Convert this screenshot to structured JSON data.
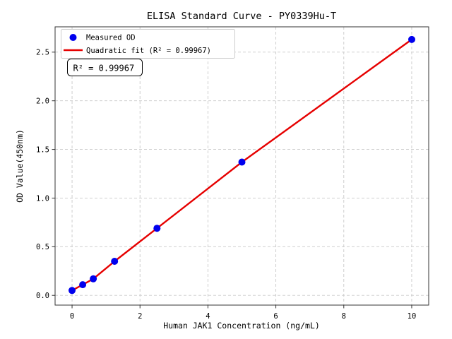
{
  "chart_data": {
    "type": "scatter",
    "title": "ELISA Standard Curve - PY0339Hu-T",
    "xlabel": "Human JAK1 Concentration (ng/mL)",
    "ylabel": "OD Value(450nm)",
    "xlim": [
      -0.5,
      10.5
    ],
    "ylim": [
      -0.1,
      2.76
    ],
    "xticks": [
      0,
      2,
      4,
      6,
      8,
      10
    ],
    "xtick_labels": [
      "0",
      "2",
      "4",
      "6",
      "8",
      "10"
    ],
    "yticks": [
      0,
      0.5,
      1.0,
      1.5,
      2.0,
      2.5
    ],
    "ytick_labels": [
      "0.0",
      "0.5",
      "1.0",
      "1.5",
      "2.0",
      "2.5"
    ],
    "grid": true,
    "legend": {
      "position": "upper-left",
      "entries": [
        {
          "label": "Measured OD",
          "marker": "circle",
          "color": "#0000ee"
        },
        {
          "label": "Quadratic fit (R² = 0.99967)",
          "marker": "line",
          "color": "#e60000"
        }
      ]
    },
    "annotation": "R² = 0.99967",
    "series": [
      {
        "name": "Measured OD",
        "type": "scatter",
        "color": "#0000ee",
        "x": [
          0,
          0.313,
          0.625,
          1.25,
          2.5,
          5,
          10
        ],
        "y": [
          0.05,
          0.11,
          0.17,
          0.35,
          0.69,
          1.37,
          2.63
        ]
      },
      {
        "name": "Quadratic fit",
        "type": "line",
        "color": "#e60000",
        "r_squared": 0.99967,
        "x": [
          0,
          0.313,
          0.625,
          1.25,
          2.5,
          5,
          10
        ],
        "y": [
          0.05,
          0.11,
          0.17,
          0.35,
          0.69,
          1.37,
          2.63
        ]
      }
    ],
    "colors": {
      "background": "#ffffff",
      "grid": "#c9c9c9",
      "spine": "#333333",
      "marker": "#0000ee",
      "fit_line": "#e60000"
    }
  }
}
